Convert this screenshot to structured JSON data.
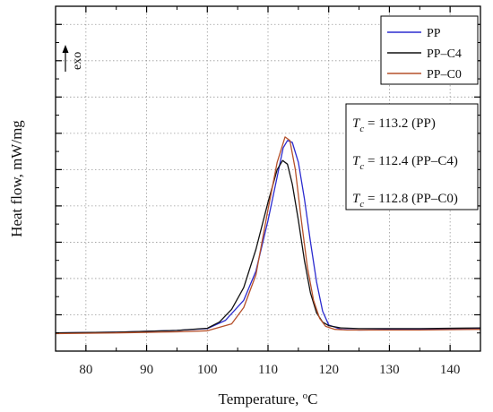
{
  "chart_data": {
    "type": "line",
    "xlabel": "Temperature, ",
    "xlabel_unit": "oC",
    "ylabel": "Heat flow, mW/mg",
    "xlim": [
      75,
      145
    ],
    "x_ticks": [
      "80",
      "90",
      "100",
      "110",
      "120",
      "130",
      "140"
    ],
    "y_ticks_labeled": false,
    "grid": true,
    "legend_position": "top-right",
    "exo_label": "exo",
    "series": [
      {
        "name": "PP",
        "color": "#2b2bcf",
        "x": [
          75,
          85,
          95,
          100,
          103,
          106,
          108,
          110,
          111.5,
          112.5,
          113.2,
          114,
          115,
          116,
          117,
          118,
          119,
          120,
          122,
          125,
          135,
          145
        ],
        "y": [
          0.5,
          0.52,
          0.57,
          0.62,
          0.85,
          1.4,
          2.2,
          3.6,
          4.8,
          5.6,
          5.8,
          5.75,
          5.2,
          4.2,
          3.0,
          1.9,
          1.1,
          0.72,
          0.6,
          0.58,
          0.6,
          0.62
        ]
      },
      {
        "name": "PP–C4",
        "color": "#111111",
        "x": [
          75,
          85,
          95,
          100,
          102,
          104,
          106,
          108,
          110,
          111.5,
          112.4,
          113.2,
          114,
          115,
          116,
          117,
          118,
          119,
          120,
          122,
          125,
          135,
          145
        ],
        "y": [
          0.5,
          0.52,
          0.57,
          0.63,
          0.8,
          1.15,
          1.75,
          2.8,
          4.1,
          5.0,
          5.25,
          5.15,
          4.6,
          3.6,
          2.5,
          1.6,
          1.05,
          0.8,
          0.7,
          0.64,
          0.62,
          0.62,
          0.64
        ]
      },
      {
        "name": "PP–C0",
        "color": "#b5502a",
        "x": [
          75,
          85,
          95,
          100,
          104,
          106,
          108,
          110,
          111.5,
          112.8,
          113.6,
          114.5,
          115.5,
          116.5,
          117.5,
          118.5,
          119.5,
          121,
          123,
          135,
          145
        ],
        "y": [
          0.48,
          0.5,
          0.53,
          0.56,
          0.75,
          1.2,
          2.1,
          3.9,
          5.2,
          5.9,
          5.8,
          5.0,
          3.6,
          2.3,
          1.4,
          0.9,
          0.68,
          0.6,
          0.58,
          0.58,
          0.6
        ]
      }
    ],
    "annotations": [
      {
        "symbol": "T",
        "sub": "c",
        "text": " = 113.2 (PP)"
      },
      {
        "symbol": "T",
        "sub": "c",
        "text": " = 112.4 (PP–C4)"
      },
      {
        "symbol": "T",
        "sub": "c",
        "text": " = 112.8 (PP–C0)"
      }
    ]
  }
}
